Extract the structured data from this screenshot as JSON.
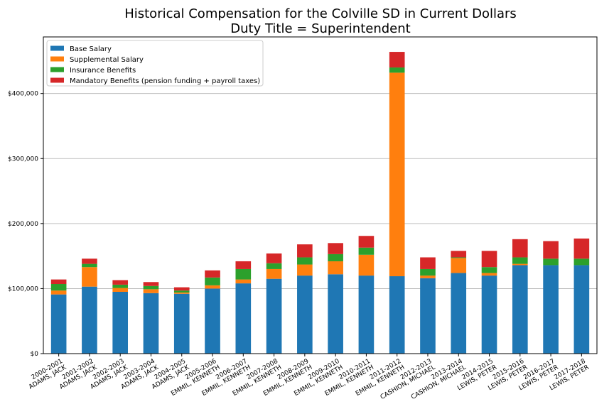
{
  "chart_data": {
    "type": "bar",
    "stacked": true,
    "title": "Historical Compensation for the Colville SD in Current Dollars",
    "subtitle": "Duty Title = Superintendent",
    "xlabel": "",
    "ylabel": "",
    "ylim": [
      0,
      487000
    ],
    "yticks": [
      0,
      100000,
      200000,
      300000,
      400000
    ],
    "ytick_labels": [
      "$0",
      "$100,000",
      "$200,000",
      "$300,000",
      "$400,000"
    ],
    "grid": "horizontal",
    "legend_placement": "top-left",
    "categories": [
      [
        "2000-2001",
        "ADAMS, JACK"
      ],
      [
        "2001-2002",
        "ADAMS, JACK"
      ],
      [
        "2002-2003",
        "ADAMS, JACK"
      ],
      [
        "2003-2004",
        "ADAMS, JACK"
      ],
      [
        "2004-2005",
        "ADAMS, JACK"
      ],
      [
        "2005-2006",
        "EMMIL, KENNETH"
      ],
      [
        "2006-2007",
        "EMMIL, KENNETH"
      ],
      [
        "2007-2008",
        "EMMIL, KENNETH"
      ],
      [
        "2008-2009",
        "EMMIL, KENNETH"
      ],
      [
        "2009-2010",
        "EMMIL, KENNETH"
      ],
      [
        "2010-2011",
        "EMMIL, KENNETH"
      ],
      [
        "2011-2012",
        "EMMIL, KENNETH"
      ],
      [
        "2012-2013",
        "CASHION, MICHAEL"
      ],
      [
        "2013-2014",
        "CASHION, MICHAEL"
      ],
      [
        "2014-2015",
        "LEWIS, PETER"
      ],
      [
        "2015-2016",
        "LEWIS, PETER"
      ],
      [
        "2016-2017",
        "LEWIS, PETER"
      ],
      [
        "2017-2018",
        "LEWIS, PETER"
      ]
    ],
    "series": [
      {
        "name": "Base Salary",
        "color": "#1f77b4",
        "values": [
          91000,
          103000,
          95000,
          93000,
          92000,
          100000,
          108000,
          115000,
          120000,
          122000,
          120000,
          119000,
          116000,
          124000,
          120000,
          136000,
          136000,
          136000
        ]
      },
      {
        "name": "Supplemental Salary",
        "color": "#ff7f0e",
        "values": [
          6000,
          30000,
          6000,
          6000,
          2000,
          5000,
          6000,
          15000,
          17000,
          20000,
          32000,
          313000,
          4000,
          23000,
          4000,
          2000,
          0,
          0
        ]
      },
      {
        "name": "Insurance Benefits",
        "color": "#2ca02c",
        "values": [
          10000,
          5000,
          5000,
          5000,
          3000,
          12000,
          16000,
          9000,
          11000,
          11000,
          11000,
          8000,
          10000,
          1000,
          9000,
          10000,
          10000,
          10000
        ]
      },
      {
        "name": "Mandatory Benefits (pension funding + payroll taxes)",
        "color": "#d62728",
        "values": [
          7000,
          8000,
          7000,
          6000,
          5000,
          11000,
          12000,
          15000,
          20000,
          17000,
          18000,
          24000,
          18000,
          10000,
          25000,
          28000,
          27000,
          31000
        ]
      }
    ]
  }
}
